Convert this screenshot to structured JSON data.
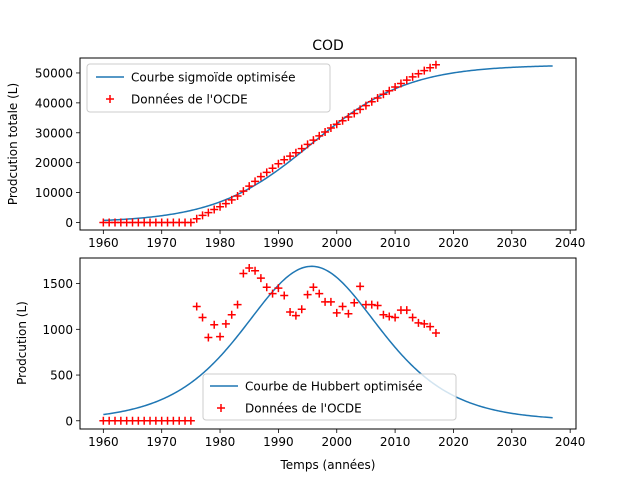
{
  "figure": {
    "title": "COD",
    "xlabel": "Temps (années)"
  },
  "chart_data": [
    {
      "type": "line",
      "title": "COD",
      "ylabel": "Prodcution totale (L)",
      "xlim": [
        1956,
        2041
      ],
      "ylim": [
        -2500,
        55000
      ],
      "xticks": [
        1960,
        1970,
        1980,
        1990,
        2000,
        2010,
        2020,
        2030,
        2040
      ],
      "yticks": [
        0,
        10000,
        20000,
        30000,
        40000,
        50000
      ],
      "legend": {
        "position": "top-left",
        "entries": [
          "Courbe sigmoïde optimisée",
          "Données de l'OCDE"
        ]
      },
      "curve": {
        "name": "Courbe sigmoïde optimisée",
        "color": "#1f77b4",
        "model": "logistic",
        "K": 52700,
        "midpoint": 1995.7,
        "scale": 8.3,
        "x_range": [
          1960,
          2037
        ]
      },
      "series": [
        {
          "name": "Données de l'OCDE",
          "marker": "+",
          "color": "#ff0000",
          "x": [
            1960,
            1961,
            1962,
            1963,
            1964,
            1965,
            1966,
            1967,
            1968,
            1969,
            1970,
            1971,
            1972,
            1973,
            1974,
            1975,
            1976,
            1977,
            1978,
            1979,
            1980,
            1981,
            1982,
            1983,
            1984,
            1985,
            1986,
            1987,
            1988,
            1989,
            1990,
            1991,
            1992,
            1993,
            1994,
            1995,
            1996,
            1997,
            1998,
            1999,
            2000,
            2001,
            2002,
            2003,
            2004,
            2005,
            2006,
            2007,
            2008,
            2009,
            2010,
            2011,
            2012,
            2013,
            2014,
            2015,
            2016,
            2017
          ],
          "y": [
            0,
            0,
            0,
            0,
            0,
            0,
            0,
            0,
            0,
            0,
            0,
            0,
            0,
            0,
            0,
            0,
            1250,
            2380,
            3290,
            4340,
            5260,
            6320,
            7590,
            8880,
            10500,
            12180,
            13770,
            15330,
            16750,
            18160,
            19630,
            20990,
            22180,
            23330,
            24710,
            26110,
            27550,
            28960,
            30270,
            31580,
            32870,
            34040,
            35290,
            36450,
            37840,
            39090,
            40370,
            41640,
            42870,
            44060,
            45300,
            46480,
            47600,
            48680,
            49720,
            50760,
            51750,
            52750
          ]
        }
      ]
    },
    {
      "type": "line",
      "ylabel": "Prodcution (L)",
      "xlabel": "Temps (années)",
      "xlim": [
        1956,
        2041
      ],
      "ylim": [
        -90,
        1780
      ],
      "xticks": [
        1960,
        1970,
        1980,
        1990,
        2000,
        2010,
        2020,
        2030,
        2040
      ],
      "yticks": [
        0,
        500,
        1000,
        1500
      ],
      "legend": {
        "position": "lower-center",
        "entries": [
          "Courbe de Hubbert optimisée",
          "Données de l'OCDE"
        ]
      },
      "curve": {
        "name": "Courbe de Hubbert optimisée",
        "color": "#1f77b4",
        "model": "hubbert",
        "K": 52700,
        "midpoint": 1995.7,
        "scale": 7.8,
        "x_range": [
          1960,
          2037
        ]
      },
      "series": [
        {
          "name": "Données de l'OCDE",
          "marker": "+",
          "color": "#ff0000",
          "x": [
            1960,
            1961,
            1962,
            1963,
            1964,
            1965,
            1966,
            1967,
            1968,
            1969,
            1970,
            1971,
            1972,
            1973,
            1974,
            1975,
            1976,
            1977,
            1978,
            1979,
            1980,
            1981,
            1982,
            1983,
            1984,
            1985,
            1986,
            1987,
            1988,
            1989,
            1990,
            1991,
            1992,
            1993,
            1994,
            1995,
            1996,
            1997,
            1998,
            1999,
            2000,
            2001,
            2002,
            2003,
            2004,
            2005,
            2006,
            2007,
            2008,
            2009,
            2010,
            2011,
            2012,
            2013,
            2014,
            2015,
            2016,
            2017
          ],
          "y": [
            0,
            0,
            0,
            0,
            0,
            0,
            0,
            0,
            0,
            0,
            0,
            0,
            0,
            0,
            0,
            0,
            1250,
            1130,
            910,
            1050,
            920,
            1060,
            1160,
            1270,
            1610,
            1670,
            1640,
            1560,
            1460,
            1390,
            1450,
            1370,
            1190,
            1150,
            1220,
            1380,
            1460,
            1390,
            1300,
            1300,
            1180,
            1250,
            1170,
            1290,
            1470,
            1270,
            1270,
            1260,
            1160,
            1140,
            1130,
            1210,
            1210,
            1130,
            1070,
            1060,
            1030,
            960
          ]
        }
      ]
    }
  ]
}
